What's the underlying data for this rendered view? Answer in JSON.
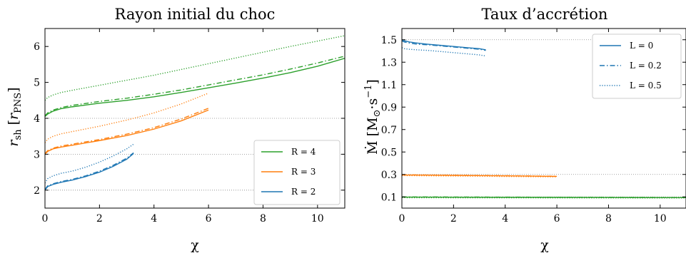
{
  "chart_data": [
    {
      "type": "line",
      "title": "Rayon initial du choc",
      "xlabel": "χ",
      "ylabel": "r_sh [r_PNS]",
      "xlim": [
        0,
        11
      ],
      "ylim": [
        1.5,
        6.5
      ],
      "xticks": [
        "0",
        "2",
        "4",
        "6",
        "8",
        "10"
      ],
      "yticks": [
        "2",
        "3",
        "4",
        "5",
        "6"
      ],
      "grid": "dotted horizontal lines at y = 2, 3, 4",
      "legend_position": "lower-right",
      "legend": [
        {
          "label": "R = 4",
          "color": "#2ca02c"
        },
        {
          "label": "R = 3",
          "color": "#ff7f0e"
        },
        {
          "label": "R = 2",
          "color": "#1f77b4"
        }
      ],
      "series": [
        {
          "group": "R = 4",
          "style": "solid",
          "color": "#2ca02c",
          "x": [
            0,
            0.1,
            0.3,
            0.6,
            1,
            2,
            3,
            4,
            5,
            6,
            7,
            8,
            9,
            10,
            11
          ],
          "y": [
            4.05,
            4.12,
            4.2,
            4.27,
            4.32,
            4.42,
            4.5,
            4.6,
            4.72,
            4.85,
            4.98,
            5.12,
            5.27,
            5.45,
            5.67
          ]
        },
        {
          "group": "R = 4",
          "style": "dashdot",
          "color": "#2ca02c",
          "x": [
            0,
            0.1,
            0.3,
            0.6,
            1,
            2,
            3,
            4,
            5,
            6,
            7,
            8,
            9,
            10,
            11
          ],
          "y": [
            4.07,
            4.15,
            4.23,
            4.3,
            4.36,
            4.47,
            4.56,
            4.67,
            4.79,
            4.93,
            5.07,
            5.21,
            5.37,
            5.54,
            5.73
          ]
        },
        {
          "group": "R = 4",
          "style": "dotted",
          "color": "#2ca02c",
          "x": [
            0,
            0.1,
            0.3,
            0.6,
            1,
            2,
            3,
            4,
            5,
            6,
            7,
            8,
            9,
            10,
            11
          ],
          "y": [
            4.5,
            4.58,
            4.65,
            4.72,
            4.78,
            4.92,
            5.06,
            5.2,
            5.36,
            5.52,
            5.68,
            5.84,
            6.0,
            6.15,
            6.3
          ]
        },
        {
          "group": "R = 3",
          "style": "solid",
          "color": "#ff7f0e",
          "x": [
            0,
            0.1,
            0.3,
            0.6,
            1,
            2,
            3,
            4,
            5,
            6
          ],
          "y": [
            3.0,
            3.08,
            3.15,
            3.2,
            3.25,
            3.38,
            3.52,
            3.7,
            3.93,
            4.23
          ]
        },
        {
          "group": "R = 3",
          "style": "dashdot",
          "color": "#ff7f0e",
          "x": [
            0,
            0.1,
            0.3,
            0.6,
            1,
            2,
            3,
            4,
            5,
            6
          ],
          "y": [
            3.02,
            3.1,
            3.17,
            3.23,
            3.28,
            3.41,
            3.56,
            3.74,
            3.98,
            4.28
          ]
        },
        {
          "group": "R = 3",
          "style": "dotted",
          "color": "#ff7f0e",
          "x": [
            0,
            0.1,
            0.3,
            0.6,
            1,
            2,
            3,
            4,
            5,
            6
          ],
          "y": [
            3.32,
            3.42,
            3.5,
            3.57,
            3.63,
            3.78,
            3.95,
            4.15,
            4.4,
            4.7
          ]
        },
        {
          "group": "R = 2",
          "style": "solid",
          "color": "#1f77b4",
          "x": [
            0,
            0.1,
            0.3,
            0.6,
            1,
            1.5,
            2,
            2.5,
            3,
            3.25
          ],
          "y": [
            2.0,
            2.1,
            2.16,
            2.22,
            2.28,
            2.38,
            2.5,
            2.66,
            2.86,
            3.02
          ]
        },
        {
          "group": "R = 2",
          "style": "dashdot",
          "color": "#1f77b4",
          "x": [
            0,
            0.1,
            0.3,
            0.6,
            1,
            1.5,
            2,
            2.5,
            3,
            3.25
          ],
          "y": [
            2.02,
            2.12,
            2.18,
            2.24,
            2.3,
            2.4,
            2.53,
            2.69,
            2.89,
            3.04
          ]
        },
        {
          "group": "R = 2",
          "style": "dotted",
          "color": "#1f77b4",
          "x": [
            0,
            0.1,
            0.3,
            0.6,
            1,
            1.5,
            2,
            2.5,
            3,
            3.25
          ],
          "y": [
            2.2,
            2.32,
            2.4,
            2.47,
            2.53,
            2.64,
            2.78,
            2.95,
            3.15,
            3.28
          ]
        }
      ]
    },
    {
      "type": "line",
      "title": "Taux d’accrétion",
      "xlabel": "χ",
      "ylabel": "Ṁ [M⊙·s⁻¹]",
      "xlim": [
        0,
        11
      ],
      "ylim": [
        0.0,
        1.6
      ],
      "xticks": [
        "0",
        "2",
        "4",
        "6",
        "8",
        "10"
      ],
      "yticks": [
        "0.1",
        "0.3",
        "0.5",
        "0.7",
        "0.9",
        "1.1",
        "1.3",
        "1.5"
      ],
      "grid": "dotted horizontal lines at y = 0.1, 0.3, 1.5",
      "legend_position": "top-right",
      "legend": [
        {
          "label": "L = 0",
          "style": "solid"
        },
        {
          "label": "L = 0.2",
          "style": "dashdot"
        },
        {
          "label": "L = 0.5",
          "style": "dotted"
        }
      ],
      "series": [
        {
          "group": "R = 2",
          "style": "solid",
          "color": "#1f77b4",
          "x": [
            0,
            0.1,
            0.3,
            0.6,
            1,
            1.5,
            2,
            2.5,
            3,
            3.25
          ],
          "y": [
            1.5,
            1.49,
            1.48,
            1.47,
            1.46,
            1.45,
            1.44,
            1.43,
            1.42,
            1.41
          ]
        },
        {
          "group": "R = 2",
          "style": "dashdot",
          "color": "#1f77b4",
          "x": [
            0,
            0.1,
            0.3,
            0.6,
            1,
            1.5,
            2,
            2.5,
            3,
            3.25
          ],
          "y": [
            1.49,
            1.48,
            1.47,
            1.46,
            1.455,
            1.445,
            1.435,
            1.425,
            1.415,
            1.405
          ]
        },
        {
          "group": "R = 2",
          "style": "dotted",
          "color": "#1f77b4",
          "x": [
            0,
            0.1,
            0.3,
            0.6,
            1,
            1.5,
            2,
            2.5,
            3,
            3.25
          ],
          "y": [
            1.43,
            1.42,
            1.415,
            1.41,
            1.405,
            1.395,
            1.385,
            1.375,
            1.365,
            1.355
          ]
        },
        {
          "group": "R = 3",
          "style": "solid",
          "color": "#ff7f0e",
          "x": [
            0,
            1,
            2,
            3,
            4,
            5,
            6
          ],
          "y": [
            0.295,
            0.294,
            0.292,
            0.29,
            0.288,
            0.285,
            0.283
          ]
        },
        {
          "group": "R = 3",
          "style": "dashdot",
          "color": "#ff7f0e",
          "x": [
            0,
            1,
            2,
            3,
            4,
            5,
            6
          ],
          "y": [
            0.297,
            0.295,
            0.293,
            0.291,
            0.289,
            0.286,
            0.284
          ]
        },
        {
          "group": "R = 3",
          "style": "dotted",
          "color": "#ff7f0e",
          "x": [
            0,
            1,
            2,
            3,
            4,
            5,
            6
          ],
          "y": [
            0.29,
            0.288,
            0.286,
            0.284,
            0.282,
            0.28,
            0.278
          ]
        },
        {
          "group": "R = 4",
          "style": "solid",
          "color": "#2ca02c",
          "x": [
            0,
            2,
            4,
            6,
            8,
            10,
            11
          ],
          "y": [
            0.098,
            0.097,
            0.096,
            0.096,
            0.095,
            0.094,
            0.094
          ]
        },
        {
          "group": "R = 4",
          "style": "dashdot",
          "color": "#2ca02c",
          "x": [
            0,
            2,
            4,
            6,
            8,
            10,
            11
          ],
          "y": [
            0.1,
            0.099,
            0.098,
            0.097,
            0.096,
            0.095,
            0.095
          ]
        },
        {
          "group": "R = 4",
          "style": "dotted",
          "color": "#2ca02c",
          "x": [
            0,
            2,
            4,
            6,
            8,
            10,
            11
          ],
          "y": [
            0.093,
            0.092,
            0.092,
            0.091,
            0.091,
            0.09,
            0.09
          ]
        }
      ]
    }
  ]
}
